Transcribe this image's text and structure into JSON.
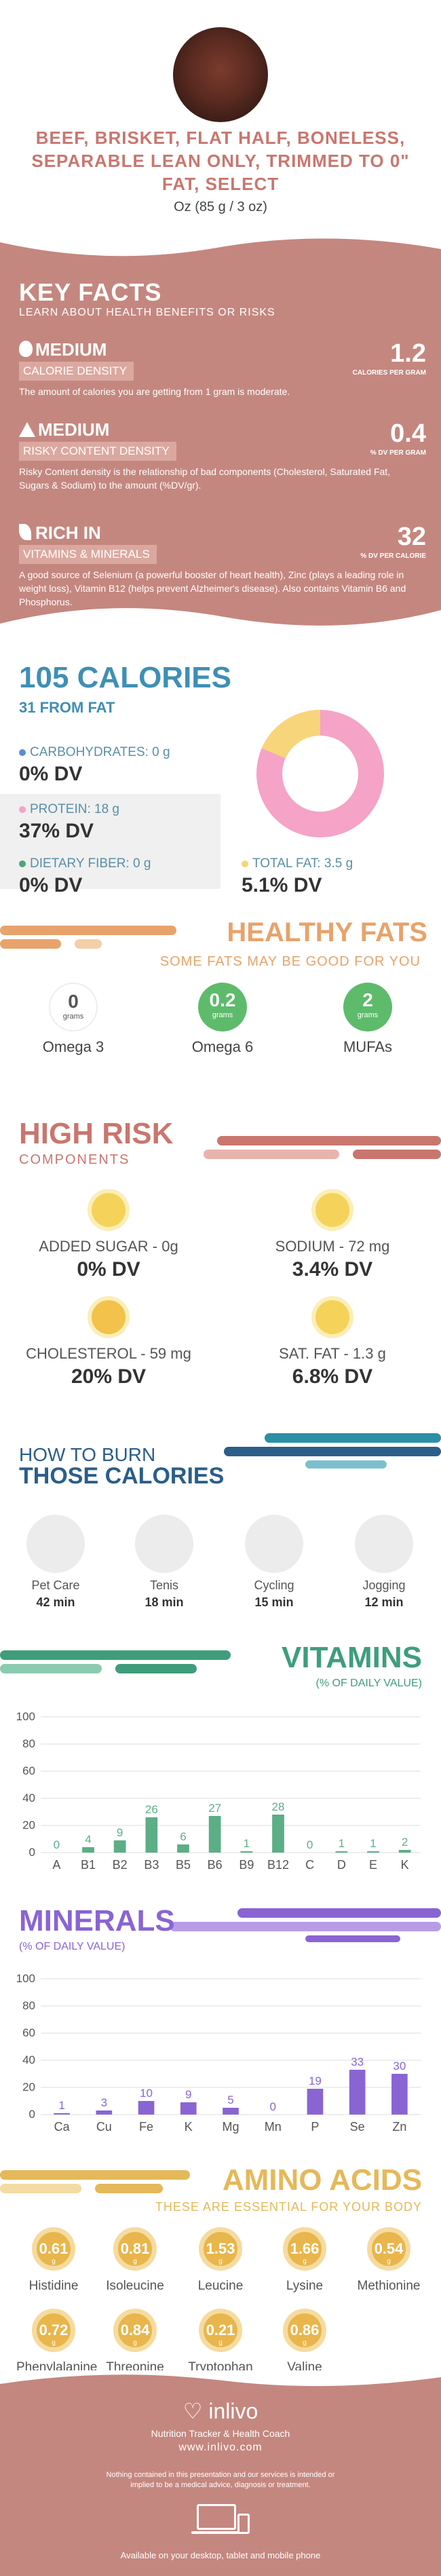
{
  "food": {
    "title": "BEEF, BRISKET, FLAT HALF, BONELESS, SEPARABLE LEAN ONLY, TRIMMED TO 0\" FAT, SELECT",
    "serving": "Oz (85 g / 3 oz)"
  },
  "key_facts": {
    "title": "KEY FACTS",
    "subtitle": "LEARN ABOUT HEALTH BENEFITS OR RISKS",
    "calorie_density": {
      "level": "MEDIUM",
      "tag": "CALORIE DENSITY",
      "value": "1.2",
      "unit": "CALORIES PER GRAM",
      "description": "The amount of calories you are getting from 1 gram is moderate."
    },
    "risky_content": {
      "level": "MEDIUM",
      "tag": "RISKY CONTENT DENSITY",
      "value": "0.4",
      "unit": "% DV PER GRAM",
      "description": "Risky Content density is the relationship of bad components (Cholesterol, Saturated Fat, Sugars & Sodium) to the amount (%DV/gr)."
    },
    "vitamins_minerals": {
      "level": "RICH  IN",
      "tag": "VITAMINS & MINERALS",
      "value": "32",
      "unit": "% DV PER CALORIE",
      "description": "A good source of Selenium (a powerful booster of heart health), Zinc (plays a leading role in weight loss), Vitamin B12 (helps prevent Alzheimer's disease). Also contains Vitamin B6 and Phosphorus."
    }
  },
  "calories": {
    "title": "105 CALORIES",
    "from_fat": "31 FROM FAT",
    "carbohydrates": {
      "label": "CARBOHYDRATES: 0 g",
      "dv": "0% DV"
    },
    "protein": {
      "label": "PROTEIN: 18 g",
      "dv": "37% DV"
    },
    "fiber": {
      "label": "DIETARY FIBER: 0 g",
      "dv": "0% DV"
    },
    "total_fat": {
      "label": "TOTAL FAT: 3.5 g",
      "dv": "5.1% DV"
    },
    "colors": {
      "carbs": "#5a8fd0",
      "protein": "#f5a3c7",
      "fiber": "#4aa777",
      "fat": "#f7d57a"
    }
  },
  "healthy_fats": {
    "title": "HEALTHY FATS",
    "subtitle": "SOME FATS MAY BE GOOD FOR YOU",
    "items": [
      {
        "value": "0",
        "unit": "grams",
        "name": "Omega 3"
      },
      {
        "value": "0.2",
        "unit": "grams",
        "name": "Omega 6"
      },
      {
        "value": "2",
        "unit": "grams",
        "name": "MUFAs"
      }
    ]
  },
  "high_risk": {
    "title": "HIGH RISK",
    "subtitle": "COMPONENTS",
    "items": [
      {
        "label": "ADDED SUGAR - 0g",
        "dv": "0% DV"
      },
      {
        "label": "SODIUM - 72 mg",
        "dv": "3.4% DV"
      },
      {
        "label": "CHOLESTEROL - 59 mg",
        "dv": "20% DV"
      },
      {
        "label": "SAT. FAT - 1.3 g",
        "dv": "6.8% DV"
      }
    ]
  },
  "burn": {
    "title1": "HOW TO BURN",
    "title2": "THOSE CALORIES",
    "items": [
      {
        "label": "Pet Care",
        "minutes": "42 min",
        "icon": "dog-walking-icon"
      },
      {
        "label": "Tenis",
        "minutes": "18 min",
        "icon": "tennis-icon"
      },
      {
        "label": "Cycling",
        "minutes": "15 min",
        "icon": "cycling-icon"
      },
      {
        "label": "Jogging",
        "minutes": "12 min",
        "icon": "jogging-icon"
      }
    ]
  },
  "vitamins": {
    "title": "VITAMINS",
    "subtitle": "(% OF DAILY VALUE)"
  },
  "minerals": {
    "title": "MINERALS",
    "subtitle": "(% OF DAILY VALUE)"
  },
  "chart_data": [
    {
      "type": "bar",
      "categories": [
        "A",
        "B1",
        "B2",
        "B3",
        "B5",
        "B6",
        "B9",
        "B12",
        "C",
        "D",
        "E",
        "K"
      ],
      "values": [
        0,
        4,
        9,
        26,
        6,
        27,
        1,
        28,
        0,
        1,
        1,
        2
      ],
      "title": "VITAMINS",
      "ylim": [
        0,
        100
      ],
      "yticks": [
        0,
        20,
        40,
        60,
        80,
        100
      ],
      "grid": true,
      "color": "#5cae87"
    },
    {
      "type": "bar",
      "categories": [
        "Ca",
        "Cu",
        "Fe",
        "K",
        "Mg",
        "Mn",
        "P",
        "Se",
        "Zn"
      ],
      "values": [
        1,
        3,
        10,
        9,
        5,
        0,
        19,
        33,
        30
      ],
      "title": "MINERALS",
      "ylim": [
        0,
        100
      ],
      "yticks": [
        0,
        20,
        40,
        60,
        80,
        100
      ],
      "grid": true,
      "color": "#8a64d3"
    }
  ],
  "amino_acids": {
    "title": "AMINO ACIDS",
    "subtitle": "THESE ARE ESSENTIAL FOR YOUR BODY",
    "unit": "g",
    "items": [
      {
        "value": "0.61",
        "name": "Histidine"
      },
      {
        "value": "0.81",
        "name": "Isoleucine"
      },
      {
        "value": "1.53",
        "name": "Leucine"
      },
      {
        "value": "1.66",
        "name": "Lysine"
      },
      {
        "value": "0.54",
        "name": "Methionine"
      },
      {
        "value": "0.72",
        "name": "Phenylalanine"
      },
      {
        "value": "0.84",
        "name": "Threonine"
      },
      {
        "value": "0.21",
        "name": "Tryptophan"
      },
      {
        "value": "0.86",
        "name": "Valine"
      }
    ]
  },
  "footer": {
    "brand": "inlivo",
    "tagline": "Nutrition Tracker & Health Coach",
    "url": "www.inlivo.com",
    "disclaimer": "Nothing contained in this presentation and our services is intended or implied to be a medical advice, diagnosis or treatment.",
    "available": "Available on your desktop, tablet and mobile phone"
  }
}
